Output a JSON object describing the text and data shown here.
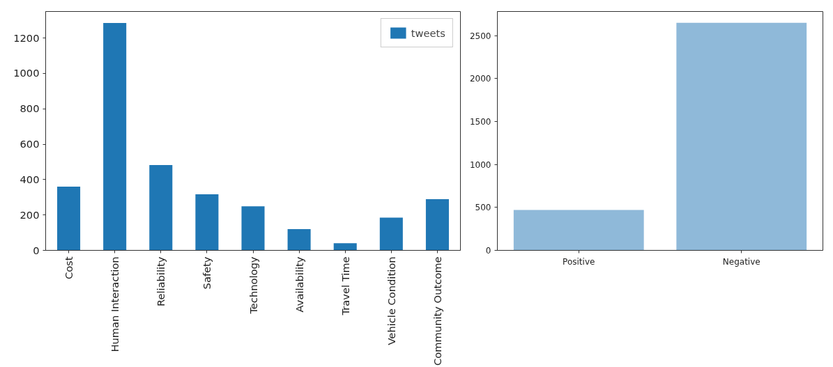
{
  "chart_data": [
    {
      "type": "bar",
      "categories": [
        "Cost",
        "Human Interaction",
        "Reliability",
        "Safety",
        "Technology",
        "Availability",
        "Travel Time",
        "Vehicle Condition",
        "Community Outcome"
      ],
      "series": [
        {
          "name": "tweets",
          "color": "#1f77b4",
          "values": [
            360,
            1285,
            482,
            317,
            249,
            120,
            40,
            185,
            289
          ]
        }
      ],
      "ylim": [
        0,
        1350
      ],
      "yticks": [
        0,
        200,
        400,
        600,
        800,
        1000,
        1200
      ],
      "legend": "top right",
      "grid": false
    },
    {
      "type": "bar",
      "categories": [
        "Positive",
        "Negative"
      ],
      "series": [
        {
          "color": "#8fb9d9",
          "values": [
            470,
            2648
          ]
        }
      ],
      "ylim": [
        0,
        2780
      ],
      "yticks": [
        0,
        500,
        1000,
        1500,
        2000,
        2500
      ],
      "grid": false
    }
  ]
}
